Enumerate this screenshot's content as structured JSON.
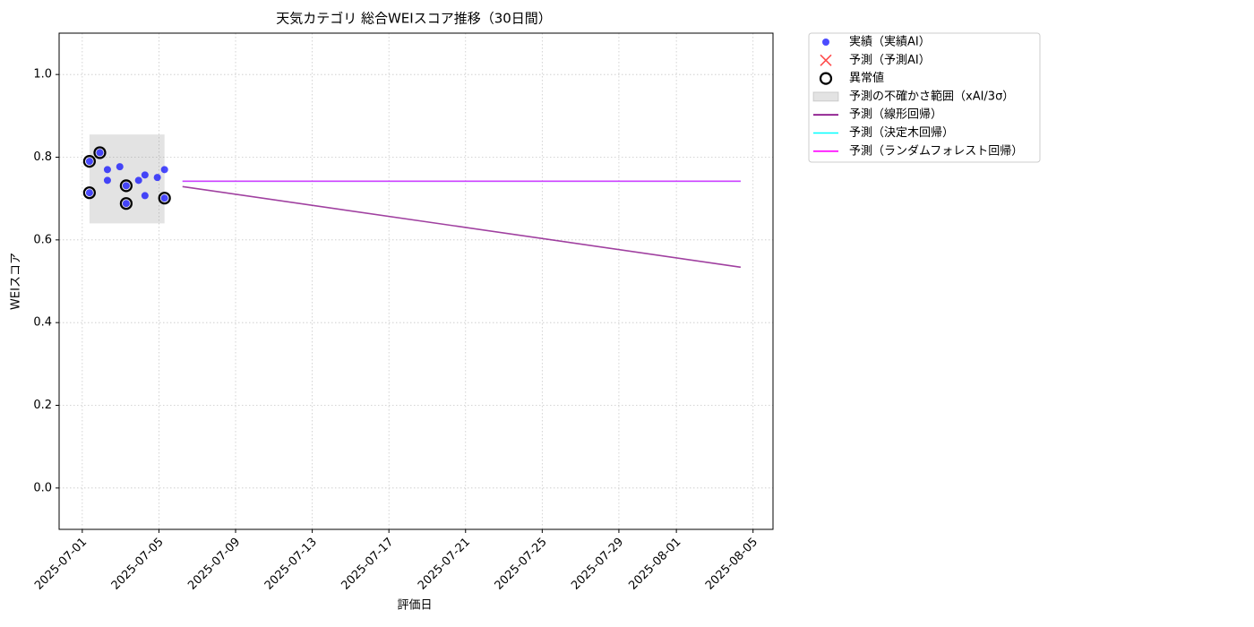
{
  "chart_data": {
    "type": "scatter",
    "title": "天気カテゴリ 総合WEIスコア推移（30日間）",
    "xlabel": "評価日",
    "ylabel": "WEIスコア",
    "xlim": [
      "2025-06-29T19:00",
      "2025-08-06T01:00"
    ],
    "ylim": [
      -0.1,
      1.1
    ],
    "xticks": [
      "2025-07-01",
      "2025-07-05",
      "2025-07-09",
      "2025-07-13",
      "2025-07-17",
      "2025-07-21",
      "2025-07-25",
      "2025-07-29",
      "2025-08-01",
      "2025-08-05"
    ],
    "yticks": [
      {
        "value": 0,
        "label": "0.0"
      },
      0.2,
      0.4,
      0.6,
      0.8,
      {
        "value": 1,
        "label": "1.0"
      }
    ],
    "grid": true,
    "legend": "outside-upper-right",
    "series": [
      {
        "name": "実績（実績AI）",
        "kind": "scatter",
        "marker": "circle",
        "color": "#0000ff",
        "x": [
          "2025-07-01T09:00",
          "2025-07-01T09:00",
          "2025-07-01T22:00",
          "2025-07-02T07:30",
          "2025-07-02T07:30",
          "2025-07-02T23:00",
          "2025-07-03T07:00",
          "2025-07-03T07:00",
          "2025-07-03T22:30",
          "2025-07-04T06:30",
          "2025-07-04T06:30",
          "2025-07-04T22:00",
          "2025-07-05T07:00",
          "2025-07-05T07:00"
        ],
        "values": [
          0.79,
          0.714,
          0.811,
          0.77,
          0.744,
          0.777,
          0.731,
          0.688,
          0.744,
          0.757,
          0.707,
          0.751,
          0.77,
          0.701
        ]
      },
      {
        "name": "予測（予測AI）",
        "kind": "scatter",
        "marker": "x",
        "color": "#ff0000",
        "x": [],
        "values": []
      },
      {
        "name": "異常値",
        "kind": "scatter",
        "marker": "ring",
        "color": "#000000",
        "x": [
          "2025-07-01T09:00",
          "2025-07-01T09:00",
          "2025-07-01T22:00",
          "2025-07-03T07:00",
          "2025-07-03T07:00",
          "2025-07-05T07:00"
        ],
        "values": [
          0.79,
          0.714,
          0.811,
          0.731,
          0.688,
          0.701
        ]
      },
      {
        "name": "予測の不確かさ範囲（xAI/3σ）",
        "kind": "band",
        "color": "#808080",
        "x": [
          "2025-07-01T09:00",
          "2025-07-05T07:00"
        ],
        "lower": [
          0.64,
          0.64
        ],
        "upper": [
          0.855,
          0.855
        ]
      },
      {
        "name": "予測（線形回帰）",
        "kind": "line",
        "color": "#800080",
        "x": [
          "2025-07-06T05:30",
          "2025-08-04T08:30"
        ],
        "values": [
          0.729,
          0.534
        ]
      },
      {
        "name": "予測（決定木回帰）",
        "kind": "line",
        "color": "#00ffff",
        "x": [
          "2025-07-06T05:30",
          "2025-08-04T08:30"
        ],
        "values": [
          0.742,
          0.742
        ]
      },
      {
        "name": "予測（ランダムフォレスト回帰）",
        "kind": "line",
        "color": "#ff00ff",
        "x": [
          "2025-07-06T05:30",
          "2025-08-04T08:30"
        ],
        "values": [
          0.742,
          0.742
        ]
      }
    ]
  }
}
